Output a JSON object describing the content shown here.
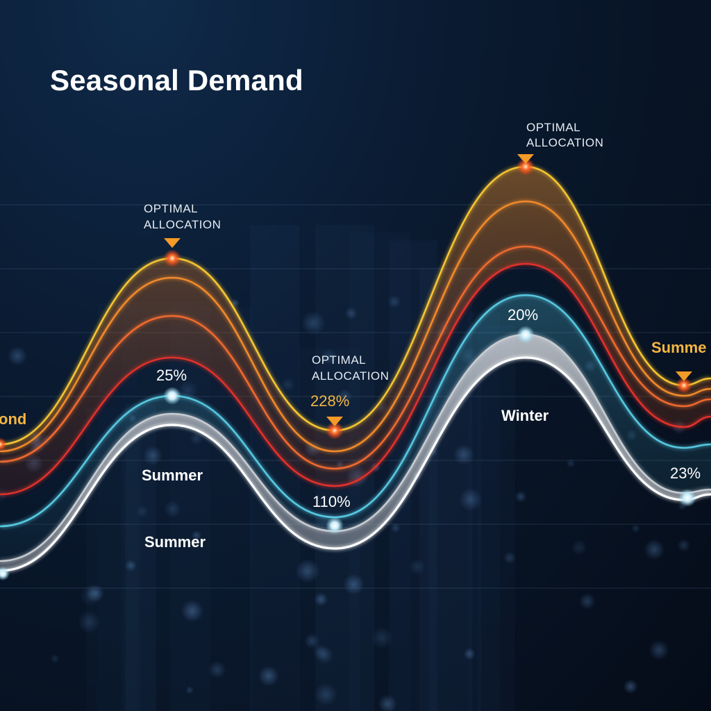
{
  "title": "Seasonal Demand",
  "chart_data": {
    "type": "line",
    "title": "Seasonal Demand",
    "grid": true,
    "legend": "none",
    "series": [
      {
        "color": "#f5c431",
        "points": [
          [
            0,
            640
          ],
          [
            248,
            372
          ],
          [
            482,
            620
          ],
          [
            757,
            240
          ],
          [
            985,
            555
          ],
          [
            1024,
            545
          ]
        ]
      },
      {
        "color": "#f08a2a",
        "points": [
          [
            0,
            650
          ],
          [
            248,
            400
          ],
          [
            482,
            650
          ],
          [
            757,
            290
          ],
          [
            985,
            570
          ],
          [
            1024,
            560
          ]
        ]
      },
      {
        "color": "#ef6a2e",
        "points": [
          [
            0,
            665
          ],
          [
            248,
            455
          ],
          [
            482,
            675
          ],
          [
            757,
            355
          ],
          [
            985,
            585
          ],
          [
            1024,
            575
          ]
        ]
      },
      {
        "color": "#e0302a",
        "points": [
          [
            0,
            712
          ],
          [
            248,
            515
          ],
          [
            482,
            700
          ],
          [
            757,
            380
          ],
          [
            985,
            615
          ],
          [
            1024,
            600
          ]
        ]
      },
      {
        "color": "#56c8e0",
        "points": [
          [
            0,
            758
          ],
          [
            248,
            570
          ],
          [
            482,
            745
          ],
          [
            757,
            425
          ],
          [
            985,
            645
          ],
          [
            1024,
            640
          ]
        ]
      },
      {
        "color": "#c8ccd2",
        "points": [
          [
            0,
            808
          ],
          [
            248,
            596
          ],
          [
            482,
            765
          ],
          [
            757,
            482
          ],
          [
            985,
            710
          ],
          [
            1024,
            705
          ]
        ]
      },
      {
        "color": "#ffffff",
        "points": [
          [
            0,
            822
          ],
          [
            248,
            612
          ],
          [
            482,
            790
          ],
          [
            757,
            515
          ],
          [
            985,
            720
          ],
          [
            1024,
            712
          ]
        ]
      }
    ],
    "annotations": {
      "callouts": [
        {
          "lines": [
            "OPTIMAL",
            "ALLOCATION"
          ]
        },
        {
          "lines": [
            "OPTIMAL",
            "ALLOCATION"
          ]
        },
        {
          "lines": [
            "OPTIMAL",
            "ALLOCATION"
          ]
        }
      ],
      "values": [
        "25%",
        "228%",
        "110%",
        "20%",
        "23%"
      ],
      "seasons": [
        "ond",
        "Summer",
        "Summer",
        "Winter",
        "Summe"
      ]
    }
  }
}
